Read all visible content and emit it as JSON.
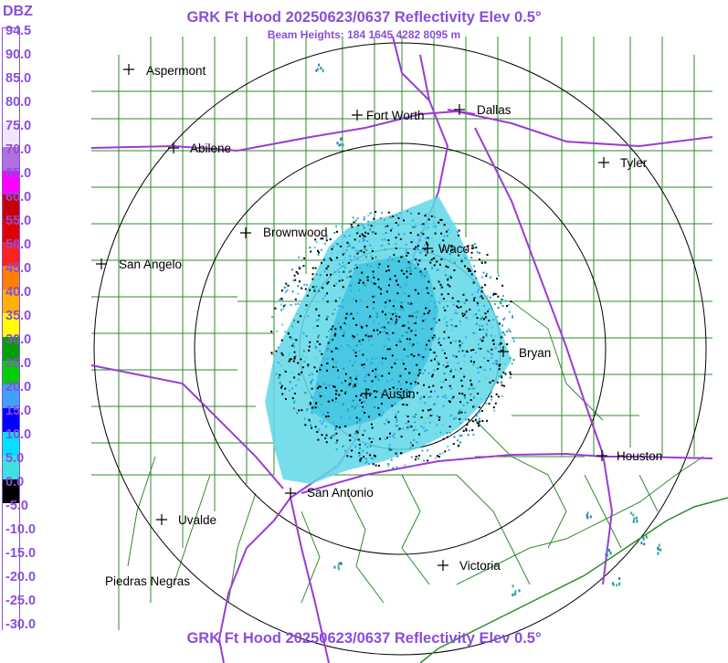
{
  "header": {
    "title": "GRK Ft Hood 20250623/0637 Reflectivity Elev 0.5°",
    "beam_heights": "Beam Heights: 184 1645 4282 8095 m",
    "footer_title": "GRK Ft Hood 20250623/0637 Reflectivity Elev 0.5°"
  },
  "legend": {
    "unit": "DBZ",
    "labels": [
      "94.5",
      "90.0",
      "85.0",
      "80.0",
      "75.0",
      "70.0",
      "65.0",
      "60.0",
      "55.0",
      "50.0",
      "45.0",
      "40.0",
      "35.0",
      "30.0",
      "25.0",
      "20.0",
      "15.0",
      "10.0",
      "5.0",
      "0.0",
      "-5.0",
      "-10.0",
      "-15.0",
      "-20.0",
      "-25.0",
      "-30.0"
    ],
    "colors": [
      "#ffffff",
      "#ffffff",
      "#ffffff",
      "#ffffff",
      "#f0e8f8",
      "#b070e0",
      "#ff00ff",
      "#c80000",
      "#e00000",
      "#ff2020",
      "#ff8000",
      "#ffb000",
      "#ffff00",
      "#00a000",
      "#00d000",
      "#40a0ff",
      "#0000ff",
      "#00e0ff",
      "#40e0e0",
      "#000000",
      "#ffffff",
      "#ffffff",
      "#ffffff",
      "#ffffff",
      "#ffffff",
      "#ffffff"
    ]
  },
  "cities": [
    {
      "name": "Aspermont",
      "marker": "plus"
    },
    {
      "name": "Fort Worth",
      "marker": "plus"
    },
    {
      "name": "Dallas",
      "marker": "plus"
    },
    {
      "name": "Abilene",
      "marker": "plus"
    },
    {
      "name": "Tyler",
      "marker": "plus"
    },
    {
      "name": "Brownwood",
      "marker": "plus"
    },
    {
      "name": "Waco",
      "marker": "plus"
    },
    {
      "name": "San Angelo",
      "marker": "plus"
    },
    {
      "name": "Bryan",
      "marker": "plus"
    },
    {
      "name": "Austin",
      "marker": "plus"
    },
    {
      "name": "Houston",
      "marker": "plus"
    },
    {
      "name": "San Antonio",
      "marker": "plus"
    },
    {
      "name": "Uvalde",
      "marker": "plus"
    },
    {
      "name": "Victoria",
      "marker": "plus"
    },
    {
      "name": "Piedras Negras",
      "marker": "none"
    }
  ],
  "colors": {
    "title": "#8a4fd8",
    "county_lines": "#2e8b2e",
    "highways": "#9b3bd6",
    "range_rings": "#000000"
  }
}
